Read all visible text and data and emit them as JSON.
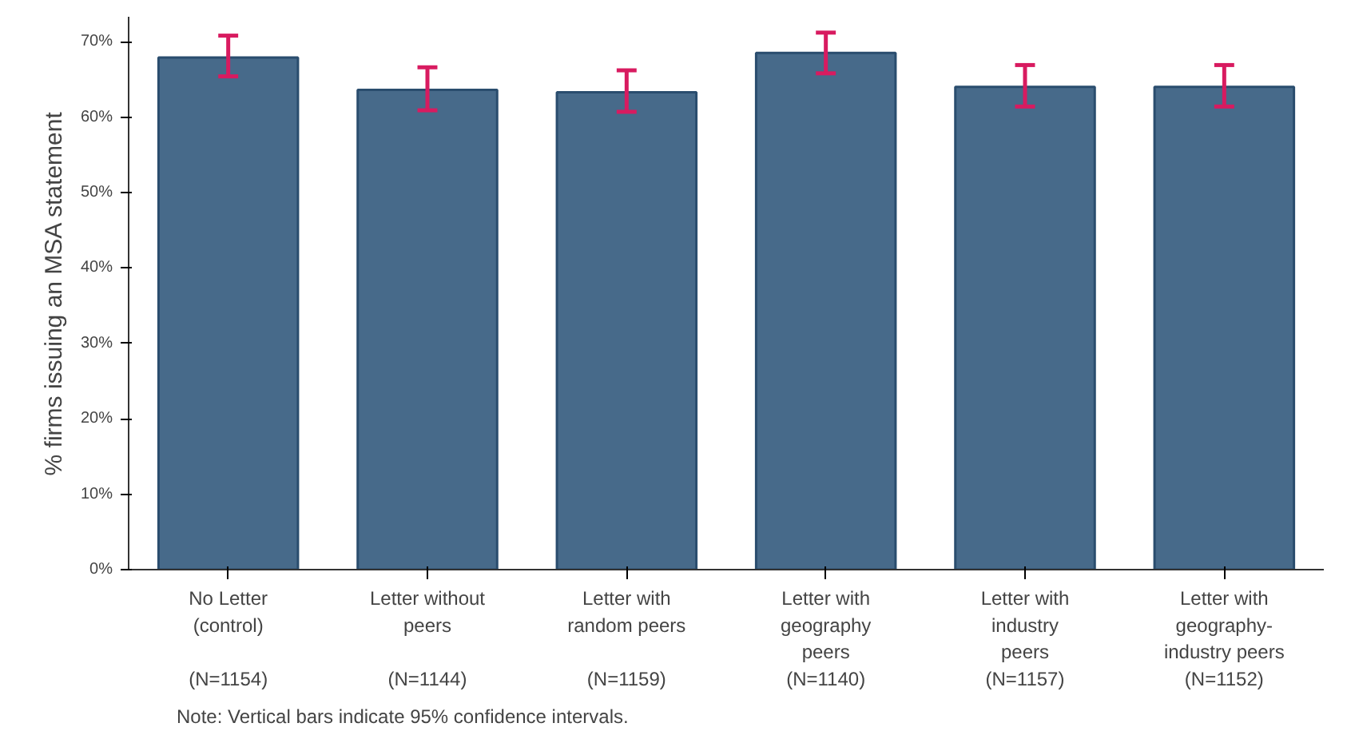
{
  "chart_data": {
    "type": "bar",
    "ylabel": "% firms issuing an MSA statement",
    "categories": [
      "No Letter\n(control)\n\n(N=1154)",
      "Letter without\npeers\n\n(N=1144)",
      "Letter with\nrandom peers\n\n(N=1159)",
      "Letter with\ngeography\npeers\n(N=1140)",
      "Letter with\nindustry\npeers\n(N=1157)",
      "Letter with\ngeography-\nindustry peers\n(N=1152)"
    ],
    "series": [
      {
        "color": "#476a8a",
        "values": [
          67.9,
          63.6,
          63.3,
          68.5,
          64.0,
          64.0
        ],
        "errors": [
          [
            65.4,
            70.8
          ],
          [
            60.9,
            66.6
          ],
          [
            60.7,
            66.2
          ],
          [
            65.8,
            71.2
          ],
          [
            61.4,
            66.9
          ],
          [
            61.4,
            66.9
          ]
        ]
      }
    ],
    "ylim": [
      0,
      73.3
    ],
    "yticks": [
      {
        "value": 0,
        "label": "0%"
      },
      {
        "value": 10,
        "label": "10%"
      },
      {
        "value": 20,
        "label": "20%"
      },
      {
        "value": 30,
        "label": "30%"
      },
      {
        "value": 40,
        "label": "40%"
      },
      {
        "value": 50,
        "label": "50%"
      },
      {
        "value": 60,
        "label": "60%"
      },
      {
        "value": 70,
        "label": "70%"
      }
    ],
    "grid": false,
    "annotations": [
      "Note: Vertical bars indicate 95% confidence intervals."
    ]
  }
}
